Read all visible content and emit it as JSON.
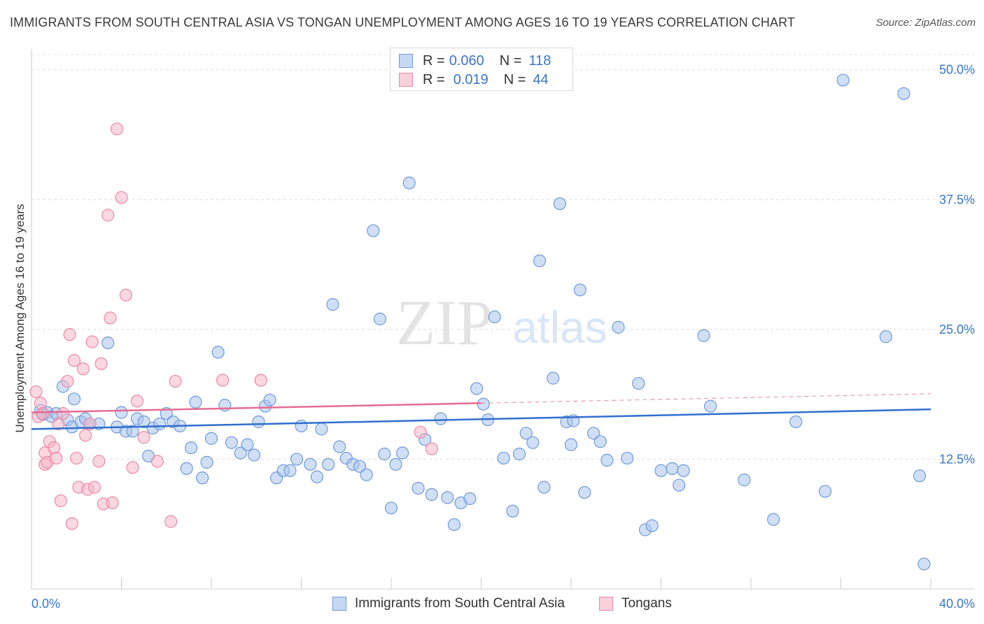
{
  "title": "IMMIGRANTS FROM SOUTH CENTRAL ASIA VS TONGAN UNEMPLOYMENT AMONG AGES 16 TO 19 YEARS CORRELATION CHART",
  "source": "Source: ZipAtlas.com",
  "watermark": {
    "zip": "ZIP",
    "atlas": "atlas"
  },
  "legend": {
    "rows": [
      {
        "r_label": "R =",
        "r_value": "0.060",
        "n_label": "N =",
        "n_value": "118"
      },
      {
        "r_label": "R =",
        "r_value": "0.019",
        "n_label": "N =",
        "n_value": "44"
      }
    ]
  },
  "chart_data": {
    "type": "scatter",
    "ylabel": "Unemployment Among Ages 16 to 19 years",
    "xlabel": "",
    "xlim": [
      0,
      40
    ],
    "ylim": [
      0,
      52
    ],
    "x_tick_labels": [
      "0.0%",
      "40.0%"
    ],
    "y_ticks": [
      12.5,
      25.0,
      37.5,
      50.0
    ],
    "y_tick_labels": [
      "12.5%",
      "25.0%",
      "37.5%",
      "50.0%"
    ],
    "grid": "horizontal dashed",
    "legend_position": "top-center and bottom",
    "series": [
      {
        "name": "Immigrants from South Central Asia",
        "color": "#a9c5ee",
        "stroke": "#6f9ad8",
        "trend": {
          "x": [
            0,
            40
          ],
          "y": [
            15.4,
            17.3
          ],
          "color": "#2f6fce"
        },
        "points": [
          [
            0.4,
            17.2
          ],
          [
            0.5,
            16.8
          ],
          [
            0.7,
            17.0
          ],
          [
            0.9,
            16.6
          ],
          [
            1.1,
            16.9
          ],
          [
            1.4,
            19.5
          ],
          [
            1.6,
            16.3
          ],
          [
            1.8,
            15.6
          ],
          [
            1.9,
            18.3
          ],
          [
            2.2,
            16.1
          ],
          [
            2.4,
            16.4
          ],
          [
            2.6,
            15.9
          ],
          [
            3.0,
            15.9
          ],
          [
            3.4,
            23.7
          ],
          [
            3.8,
            15.6
          ],
          [
            4.0,
            17.0
          ],
          [
            4.2,
            15.2
          ],
          [
            4.5,
            15.2
          ],
          [
            4.7,
            16.4
          ],
          [
            5.0,
            16.1
          ],
          [
            5.2,
            12.8
          ],
          [
            5.4,
            15.5
          ],
          [
            5.7,
            15.9
          ],
          [
            6.0,
            16.9
          ],
          [
            6.3,
            16.1
          ],
          [
            6.6,
            15.7
          ],
          [
            6.9,
            11.6
          ],
          [
            7.1,
            13.6
          ],
          [
            7.3,
            18.0
          ],
          [
            7.6,
            10.7
          ],
          [
            7.8,
            12.2
          ],
          [
            8.0,
            14.5
          ],
          [
            8.3,
            22.8
          ],
          [
            8.6,
            17.7
          ],
          [
            8.9,
            14.1
          ],
          [
            9.3,
            13.1
          ],
          [
            9.6,
            13.9
          ],
          [
            9.9,
            12.9
          ],
          [
            10.1,
            16.1
          ],
          [
            10.4,
            17.6
          ],
          [
            10.6,
            18.2
          ],
          [
            10.9,
            10.7
          ],
          [
            11.2,
            11.4
          ],
          [
            11.5,
            11.4
          ],
          [
            11.8,
            12.5
          ],
          [
            12.0,
            15.7
          ],
          [
            12.4,
            12.0
          ],
          [
            12.7,
            10.8
          ],
          [
            12.9,
            15.4
          ],
          [
            13.2,
            12.0
          ],
          [
            13.4,
            27.4
          ],
          [
            13.7,
            13.7
          ],
          [
            14.0,
            12.6
          ],
          [
            14.3,
            12.0
          ],
          [
            14.6,
            11.8
          ],
          [
            14.9,
            11.0
          ],
          [
            15.2,
            34.5
          ],
          [
            15.5,
            26.0
          ],
          [
            15.7,
            13.0
          ],
          [
            16.0,
            7.8
          ],
          [
            16.2,
            12.0
          ],
          [
            16.5,
            13.1
          ],
          [
            16.8,
            39.1
          ],
          [
            17.2,
            9.7
          ],
          [
            17.5,
            14.4
          ],
          [
            17.8,
            9.1
          ],
          [
            18.2,
            16.4
          ],
          [
            18.5,
            8.8
          ],
          [
            18.8,
            6.2
          ],
          [
            19.1,
            8.3
          ],
          [
            19.5,
            8.7
          ],
          [
            19.8,
            19.3
          ],
          [
            20.1,
            17.8
          ],
          [
            20.3,
            16.3
          ],
          [
            20.6,
            26.2
          ],
          [
            21.0,
            12.6
          ],
          [
            21.4,
            7.5
          ],
          [
            21.7,
            13.0
          ],
          [
            22.0,
            15.0
          ],
          [
            22.3,
            14.1
          ],
          [
            22.6,
            31.6
          ],
          [
            22.8,
            9.8
          ],
          [
            23.2,
            20.3
          ],
          [
            23.5,
            37.1
          ],
          [
            23.8,
            16.1
          ],
          [
            24.0,
            13.9
          ],
          [
            24.4,
            28.8
          ],
          [
            24.6,
            9.3
          ],
          [
            25.0,
            15.0
          ],
          [
            25.3,
            14.2
          ],
          [
            25.6,
            12.4
          ],
          [
            26.1,
            25.2
          ],
          [
            26.5,
            12.6
          ],
          [
            27.0,
            19.8
          ],
          [
            27.3,
            5.7
          ],
          [
            27.6,
            6.1
          ],
          [
            28.0,
            11.4
          ],
          [
            28.5,
            11.6
          ],
          [
            28.8,
            10.0
          ],
          [
            29.0,
            11.4
          ],
          [
            29.9,
            24.4
          ],
          [
            30.2,
            17.6
          ],
          [
            31.7,
            10.5
          ],
          [
            33.0,
            6.7
          ],
          [
            34.0,
            16.1
          ],
          [
            35.3,
            9.4
          ],
          [
            36.1,
            49.0
          ],
          [
            38.0,
            24.3
          ],
          [
            38.8,
            47.7
          ],
          [
            39.5,
            10.9
          ],
          [
            39.7,
            2.4
          ],
          [
            24.1,
            16.2
          ]
        ]
      },
      {
        "name": "Tongans",
        "color": "#f6b7c9",
        "stroke": "#e98aa6",
        "trend": {
          "x": [
            0,
            20
          ],
          "y": [
            17.0,
            17.9
          ],
          "color": "#e46c93",
          "dash_to": [
            40,
            18.8
          ]
        },
        "points": [
          [
            0.2,
            19.0
          ],
          [
            0.3,
            16.6
          ],
          [
            0.4,
            17.9
          ],
          [
            0.5,
            16.9
          ],
          [
            0.6,
            13.1
          ],
          [
            0.6,
            12.0
          ],
          [
            0.7,
            12.2
          ],
          [
            0.8,
            14.2
          ],
          [
            1.0,
            13.6
          ],
          [
            1.1,
            12.6
          ],
          [
            1.2,
            15.9
          ],
          [
            1.3,
            8.5
          ],
          [
            1.4,
            16.9
          ],
          [
            1.6,
            20.0
          ],
          [
            1.7,
            24.5
          ],
          [
            1.8,
            6.3
          ],
          [
            1.9,
            22.0
          ],
          [
            2.0,
            12.6
          ],
          [
            2.1,
            9.8
          ],
          [
            2.3,
            21.2
          ],
          [
            2.4,
            14.8
          ],
          [
            2.5,
            9.6
          ],
          [
            2.6,
            15.9
          ],
          [
            2.7,
            23.8
          ],
          [
            2.8,
            9.8
          ],
          [
            3.0,
            12.3
          ],
          [
            3.1,
            21.7
          ],
          [
            3.2,
            8.2
          ],
          [
            3.4,
            36.0
          ],
          [
            3.5,
            26.1
          ],
          [
            3.6,
            8.3
          ],
          [
            3.8,
            44.3
          ],
          [
            4.0,
            37.7
          ],
          [
            4.2,
            28.3
          ],
          [
            4.5,
            11.7
          ],
          [
            4.7,
            18.1
          ],
          [
            5.0,
            14.6
          ],
          [
            5.6,
            12.3
          ],
          [
            6.2,
            6.5
          ],
          [
            6.4,
            20.0
          ],
          [
            8.5,
            20.1
          ],
          [
            10.2,
            20.1
          ],
          [
            17.3,
            15.1
          ],
          [
            17.8,
            13.5
          ]
        ]
      }
    ]
  }
}
